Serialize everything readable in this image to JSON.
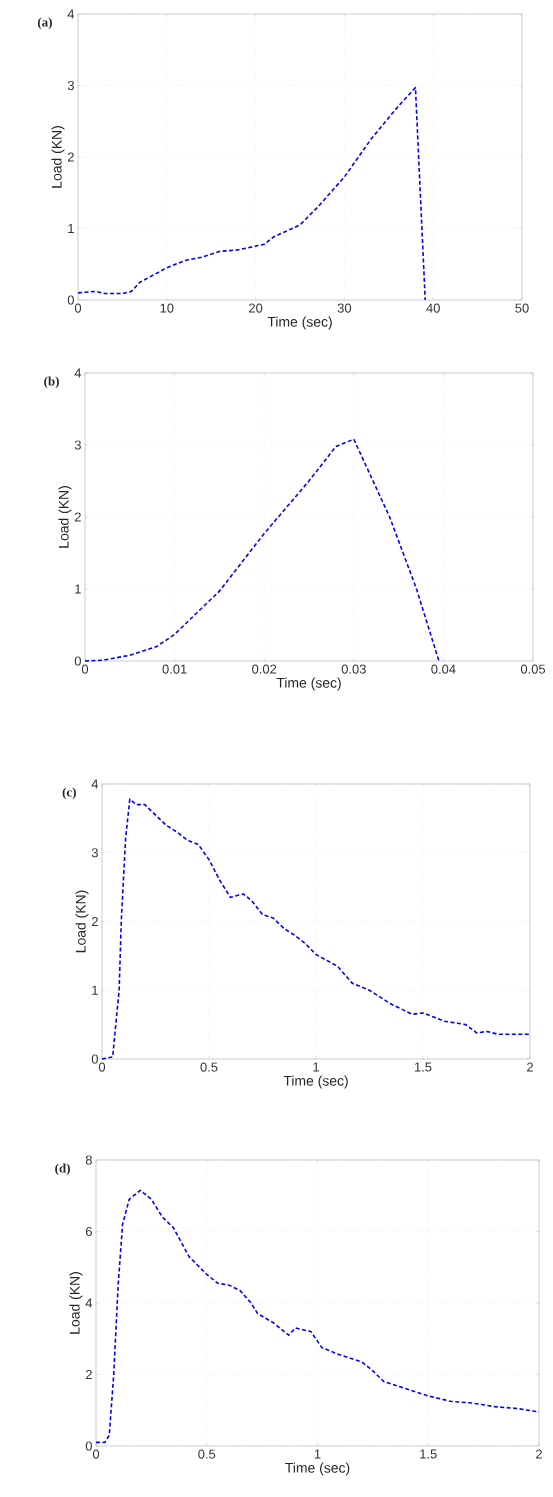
{
  "chart_data": [
    {
      "type": "line",
      "title": "(a)",
      "xlabel": "Time (sec)",
      "ylabel": "Load (KN)",
      "xlim": [
        0,
        50
      ],
      "ylim": [
        0,
        4
      ],
      "xticks": [
        0,
        10,
        20,
        30,
        40,
        50
      ],
      "yticks": [
        0,
        1,
        2,
        3,
        4
      ],
      "grid": true,
      "line_style": "dashed",
      "series": [
        {
          "color": "#0000ff",
          "x": [
            0,
            2,
            3,
            5,
            6,
            7,
            10,
            12,
            14,
            16,
            18,
            21,
            22,
            25,
            27,
            30,
            33,
            36,
            38,
            39.1
          ],
          "values": [
            0.1,
            0.12,
            0.09,
            0.09,
            0.12,
            0.25,
            0.45,
            0.55,
            0.6,
            0.68,
            0.7,
            0.78,
            0.88,
            1.05,
            1.3,
            1.72,
            2.25,
            2.7,
            2.97,
            0
          ]
        }
      ]
    },
    {
      "type": "line",
      "title": "(b)",
      "xlabel": "Time (sec)",
      "ylabel": "Load (KN)",
      "xlim": [
        0,
        0.05
      ],
      "ylim": [
        0,
        4
      ],
      "xticks": [
        0,
        0.01,
        0.02,
        0.03,
        0.04,
        0.05
      ],
      "yticks": [
        0,
        1,
        2,
        3,
        4
      ],
      "grid": true,
      "line_style": "dashed",
      "series": [
        {
          "color": "#0000ff",
          "x": [
            0,
            0.002,
            0.005,
            0.008,
            0.01,
            0.015,
            0.02,
            0.025,
            0.028,
            0.03,
            0.034,
            0.037,
            0.0395
          ],
          "values": [
            0,
            0.01,
            0.08,
            0.2,
            0.37,
            0.97,
            1.77,
            2.5,
            2.98,
            3.08,
            2.0,
            1.0,
            0
          ]
        }
      ]
    },
    {
      "type": "line",
      "title": "(c)",
      "xlabel": "Time (sec)",
      "ylabel": "Load (KN)",
      "xlim": [
        0,
        2
      ],
      "ylim": [
        0,
        4
      ],
      "xticks": [
        0,
        0.5,
        1,
        1.5,
        2
      ],
      "yticks": [
        0,
        1,
        2,
        3,
        4
      ],
      "grid": true,
      "line_style": "dashed",
      "series": [
        {
          "color": "#0000ff",
          "x": [
            0,
            0.05,
            0.08,
            0.09,
            0.11,
            0.13,
            0.16,
            0.2,
            0.25,
            0.3,
            0.35,
            0.4,
            0.45,
            0.5,
            0.55,
            0.6,
            0.66,
            0.7,
            0.75,
            0.8,
            0.85,
            0.9,
            0.95,
            1.0,
            1.1,
            1.17,
            1.25,
            1.35,
            1.45,
            1.5,
            1.6,
            1.7,
            1.75,
            1.8,
            1.85,
            2
          ],
          "values": [
            0,
            0.03,
            1.0,
            2.0,
            3.2,
            3.78,
            3.7,
            3.7,
            3.55,
            3.4,
            3.3,
            3.18,
            3.12,
            2.9,
            2.6,
            2.35,
            2.4,
            2.3,
            2.1,
            2.05,
            1.9,
            1.8,
            1.68,
            1.52,
            1.35,
            1.1,
            1.0,
            0.8,
            0.65,
            0.67,
            0.55,
            0.5,
            0.38,
            0.4,
            0.36,
            0.36
          ]
        }
      ]
    },
    {
      "type": "line",
      "title": "(d)",
      "xlabel": "Time (sec)",
      "ylabel": "Load (KN)",
      "xlim": [
        0,
        2
      ],
      "ylim": [
        0,
        8
      ],
      "xticks": [
        0,
        0.5,
        1,
        1.5,
        2
      ],
      "yticks": [
        0,
        2,
        4,
        6,
        8
      ],
      "grid": true,
      "line_style": "dashed",
      "series": [
        {
          "color": "#0000ff",
          "x": [
            0,
            0.04,
            0.06,
            0.08,
            0.1,
            0.12,
            0.15,
            0.2,
            0.25,
            0.3,
            0.35,
            0.42,
            0.5,
            0.55,
            0.6,
            0.65,
            0.7,
            0.73,
            0.8,
            0.87,
            0.9,
            0.97,
            1.02,
            1.1,
            1.2,
            1.25,
            1.3,
            1.4,
            1.5,
            1.6,
            1.7,
            1.8,
            1.9,
            2
          ],
          "values": [
            0.1,
            0.1,
            0.3,
            2.0,
            4.5,
            6.2,
            6.9,
            7.15,
            6.9,
            6.4,
            6.1,
            5.3,
            4.8,
            4.55,
            4.5,
            4.35,
            4.0,
            3.7,
            3.45,
            3.1,
            3.3,
            3.2,
            2.75,
            2.55,
            2.35,
            2.1,
            1.8,
            1.6,
            1.4,
            1.25,
            1.2,
            1.1,
            1.05,
            0.95
          ]
        }
      ]
    }
  ]
}
